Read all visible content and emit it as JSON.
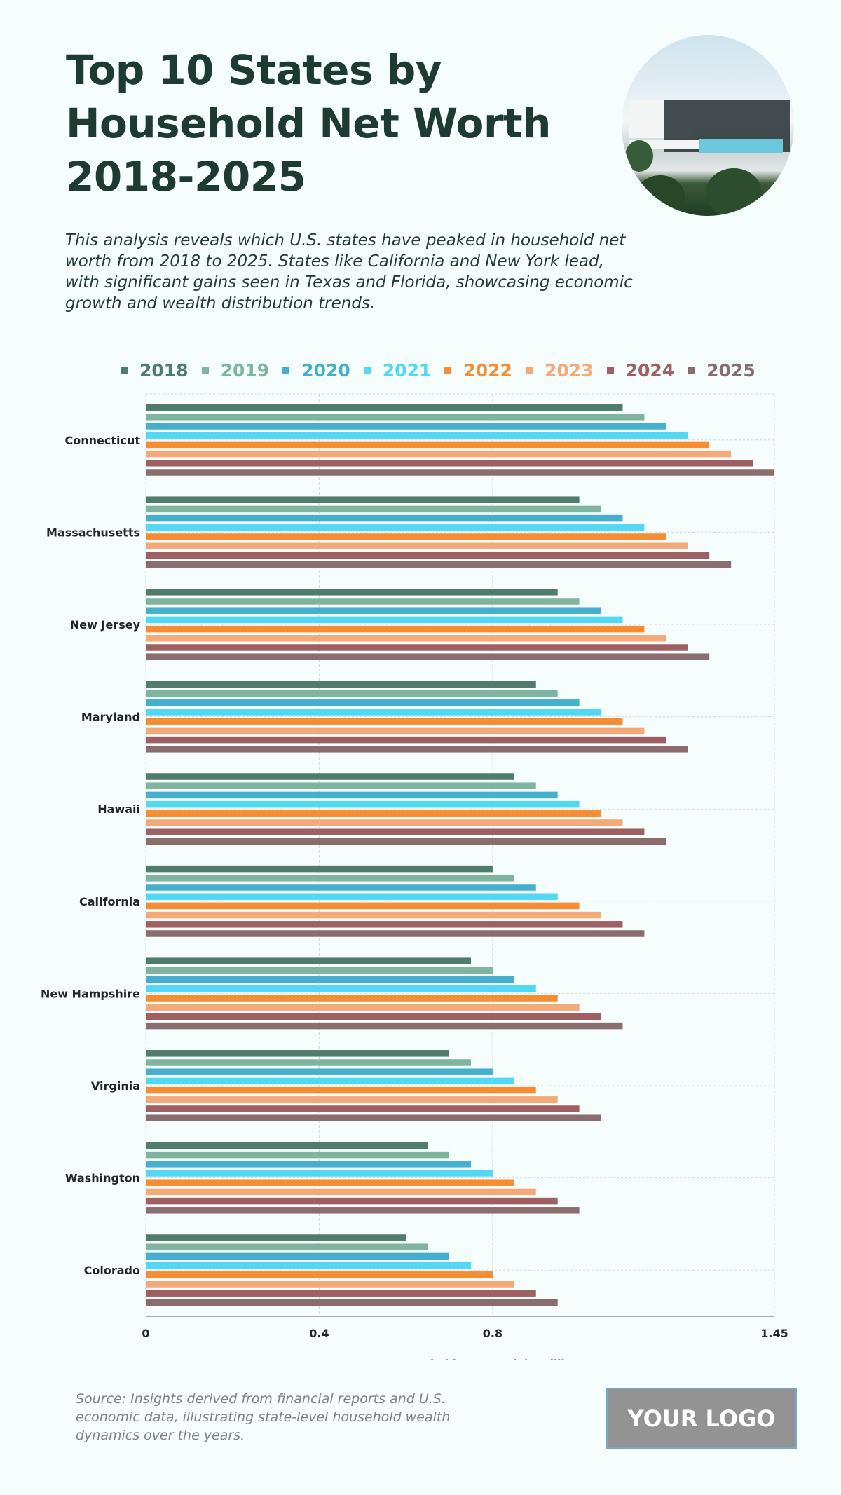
{
  "header": {
    "title": "Top 10 States by Household Net Worth 2018-2025",
    "subtitle": "This analysis reveals which U.S. states have peaked in household net worth from 2018 to 2025. States like California and New York lead, with significant gains seen in Texas and Florida, showcasing economic growth and wealth distribution trends.",
    "image_alt": "modern-house-photo"
  },
  "footer": {
    "source": "Source: Insights derived from financial reports and U.S. economic data, illustrating state-level household wealth dynamics over the years.",
    "logo": "YOUR LOGO"
  },
  "chart_data": {
    "type": "bar",
    "orientation": "horizontal",
    "title": "Top 10 States by Household Net Worth 2018-2025",
    "xlabel": "Average Household Net Worth in million",
    "ylabel": "",
    "xlim": [
      0,
      1.45
    ],
    "xticks": [
      0,
      0.4,
      0.8,
      1.45
    ],
    "xtick_labels": [
      "0",
      "0.4",
      "0.8",
      "1.45"
    ],
    "grid": true,
    "legend_position": "top",
    "categories": [
      "Connecticut",
      "Massachusetts",
      "New Jersey",
      "Maryland",
      "Hawaii",
      "California",
      "New Hampshire",
      "Virginia",
      "Washington",
      "Colorado"
    ],
    "series": [
      {
        "name": "2018",
        "color": "#4f7c6b",
        "values": [
          1.1,
          1.0,
          0.95,
          0.9,
          0.85,
          0.8,
          0.75,
          0.7,
          0.65,
          0.6
        ]
      },
      {
        "name": "2019",
        "color": "#7fb49f",
        "values": [
          1.15,
          1.05,
          1.0,
          0.95,
          0.9,
          0.85,
          0.8,
          0.75,
          0.7,
          0.65
        ]
      },
      {
        "name": "2020",
        "color": "#46afd0",
        "values": [
          1.2,
          1.1,
          1.05,
          1.0,
          0.95,
          0.9,
          0.85,
          0.8,
          0.75,
          0.7
        ]
      },
      {
        "name": "2021",
        "color": "#52d8f4",
        "values": [
          1.25,
          1.15,
          1.1,
          1.05,
          1.0,
          0.95,
          0.9,
          0.85,
          0.8,
          0.75
        ]
      },
      {
        "name": "2022",
        "color": "#f68d33",
        "values": [
          1.3,
          1.2,
          1.15,
          1.1,
          1.05,
          1.0,
          0.95,
          0.9,
          0.85,
          0.8
        ]
      },
      {
        "name": "2023",
        "color": "#f4aa78",
        "values": [
          1.35,
          1.25,
          1.2,
          1.15,
          1.1,
          1.05,
          1.0,
          0.95,
          0.9,
          0.85
        ]
      },
      {
        "name": "2024",
        "color": "#9e6062",
        "values": [
          1.4,
          1.3,
          1.25,
          1.2,
          1.15,
          1.1,
          1.05,
          1.0,
          0.95,
          0.9
        ]
      },
      {
        "name": "2025",
        "color": "#8a6d6f",
        "values": [
          1.45,
          1.35,
          1.3,
          1.25,
          1.2,
          1.15,
          1.1,
          1.05,
          1.0,
          0.95
        ]
      }
    ]
  }
}
